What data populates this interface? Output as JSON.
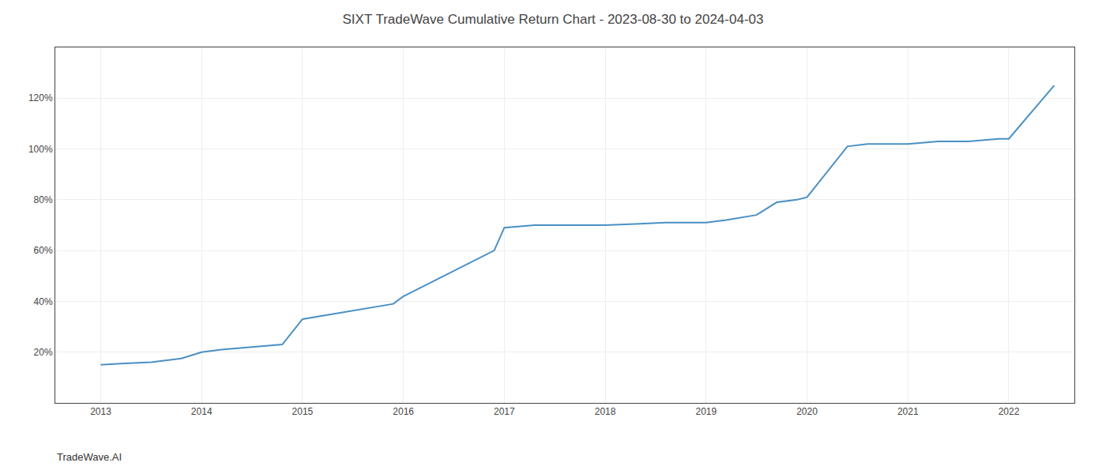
{
  "chart_data": {
    "type": "line",
    "title": "SIXT TradeWave Cumulative Return Chart - 2023-08-30 to 2024-04-03",
    "annotations": [
      "TradeWave.AI"
    ],
    "x": [
      2013.0,
      2013.2,
      2013.5,
      2013.8,
      2014.0,
      2014.2,
      2014.5,
      2014.8,
      2015.0,
      2015.3,
      2015.6,
      2015.9,
      2016.0,
      2016.3,
      2016.6,
      2016.9,
      2017.0,
      2017.15,
      2017.3,
      2017.5,
      2017.7,
      2017.9,
      2018.0,
      2018.3,
      2018.6,
      2018.9,
      2019.0,
      2019.2,
      2019.5,
      2019.7,
      2019.9,
      2020.0,
      2020.2,
      2020.4,
      2020.6,
      2020.9,
      2021.0,
      2021.3,
      2021.6,
      2021.9,
      2022.0,
      2022.3,
      2022.45
    ],
    "values": [
      15,
      15.5,
      16,
      17.5,
      20,
      21,
      22,
      23,
      33,
      35,
      37,
      39,
      42,
      48,
      54,
      60,
      69,
      69.5,
      70,
      70,
      70,
      70,
      70,
      70.5,
      71,
      71,
      71,
      72,
      74,
      79,
      80,
      81,
      91,
      101,
      102,
      102,
      102,
      103,
      103,
      104,
      104,
      118,
      125
    ],
    "color": "#4a90c4",
    "xlim": [
      2012.55,
      2022.65
    ],
    "xticks": [
      2013,
      2014,
      2015,
      2016,
      2017,
      2018,
      2019,
      2020,
      2021,
      2022
    ],
    "ylim": [
      0,
      140
    ],
    "yticks": [
      {
        "value": 20,
        "label": "20%"
      },
      {
        "value": 40,
        "label": "40%"
      },
      {
        "value": 60,
        "label": "60%"
      },
      {
        "value": 80,
        "label": "80%"
      },
      {
        "value": 100,
        "label": "100%"
      },
      {
        "value": 120,
        "label": "120%"
      }
    ],
    "grid": true
  }
}
